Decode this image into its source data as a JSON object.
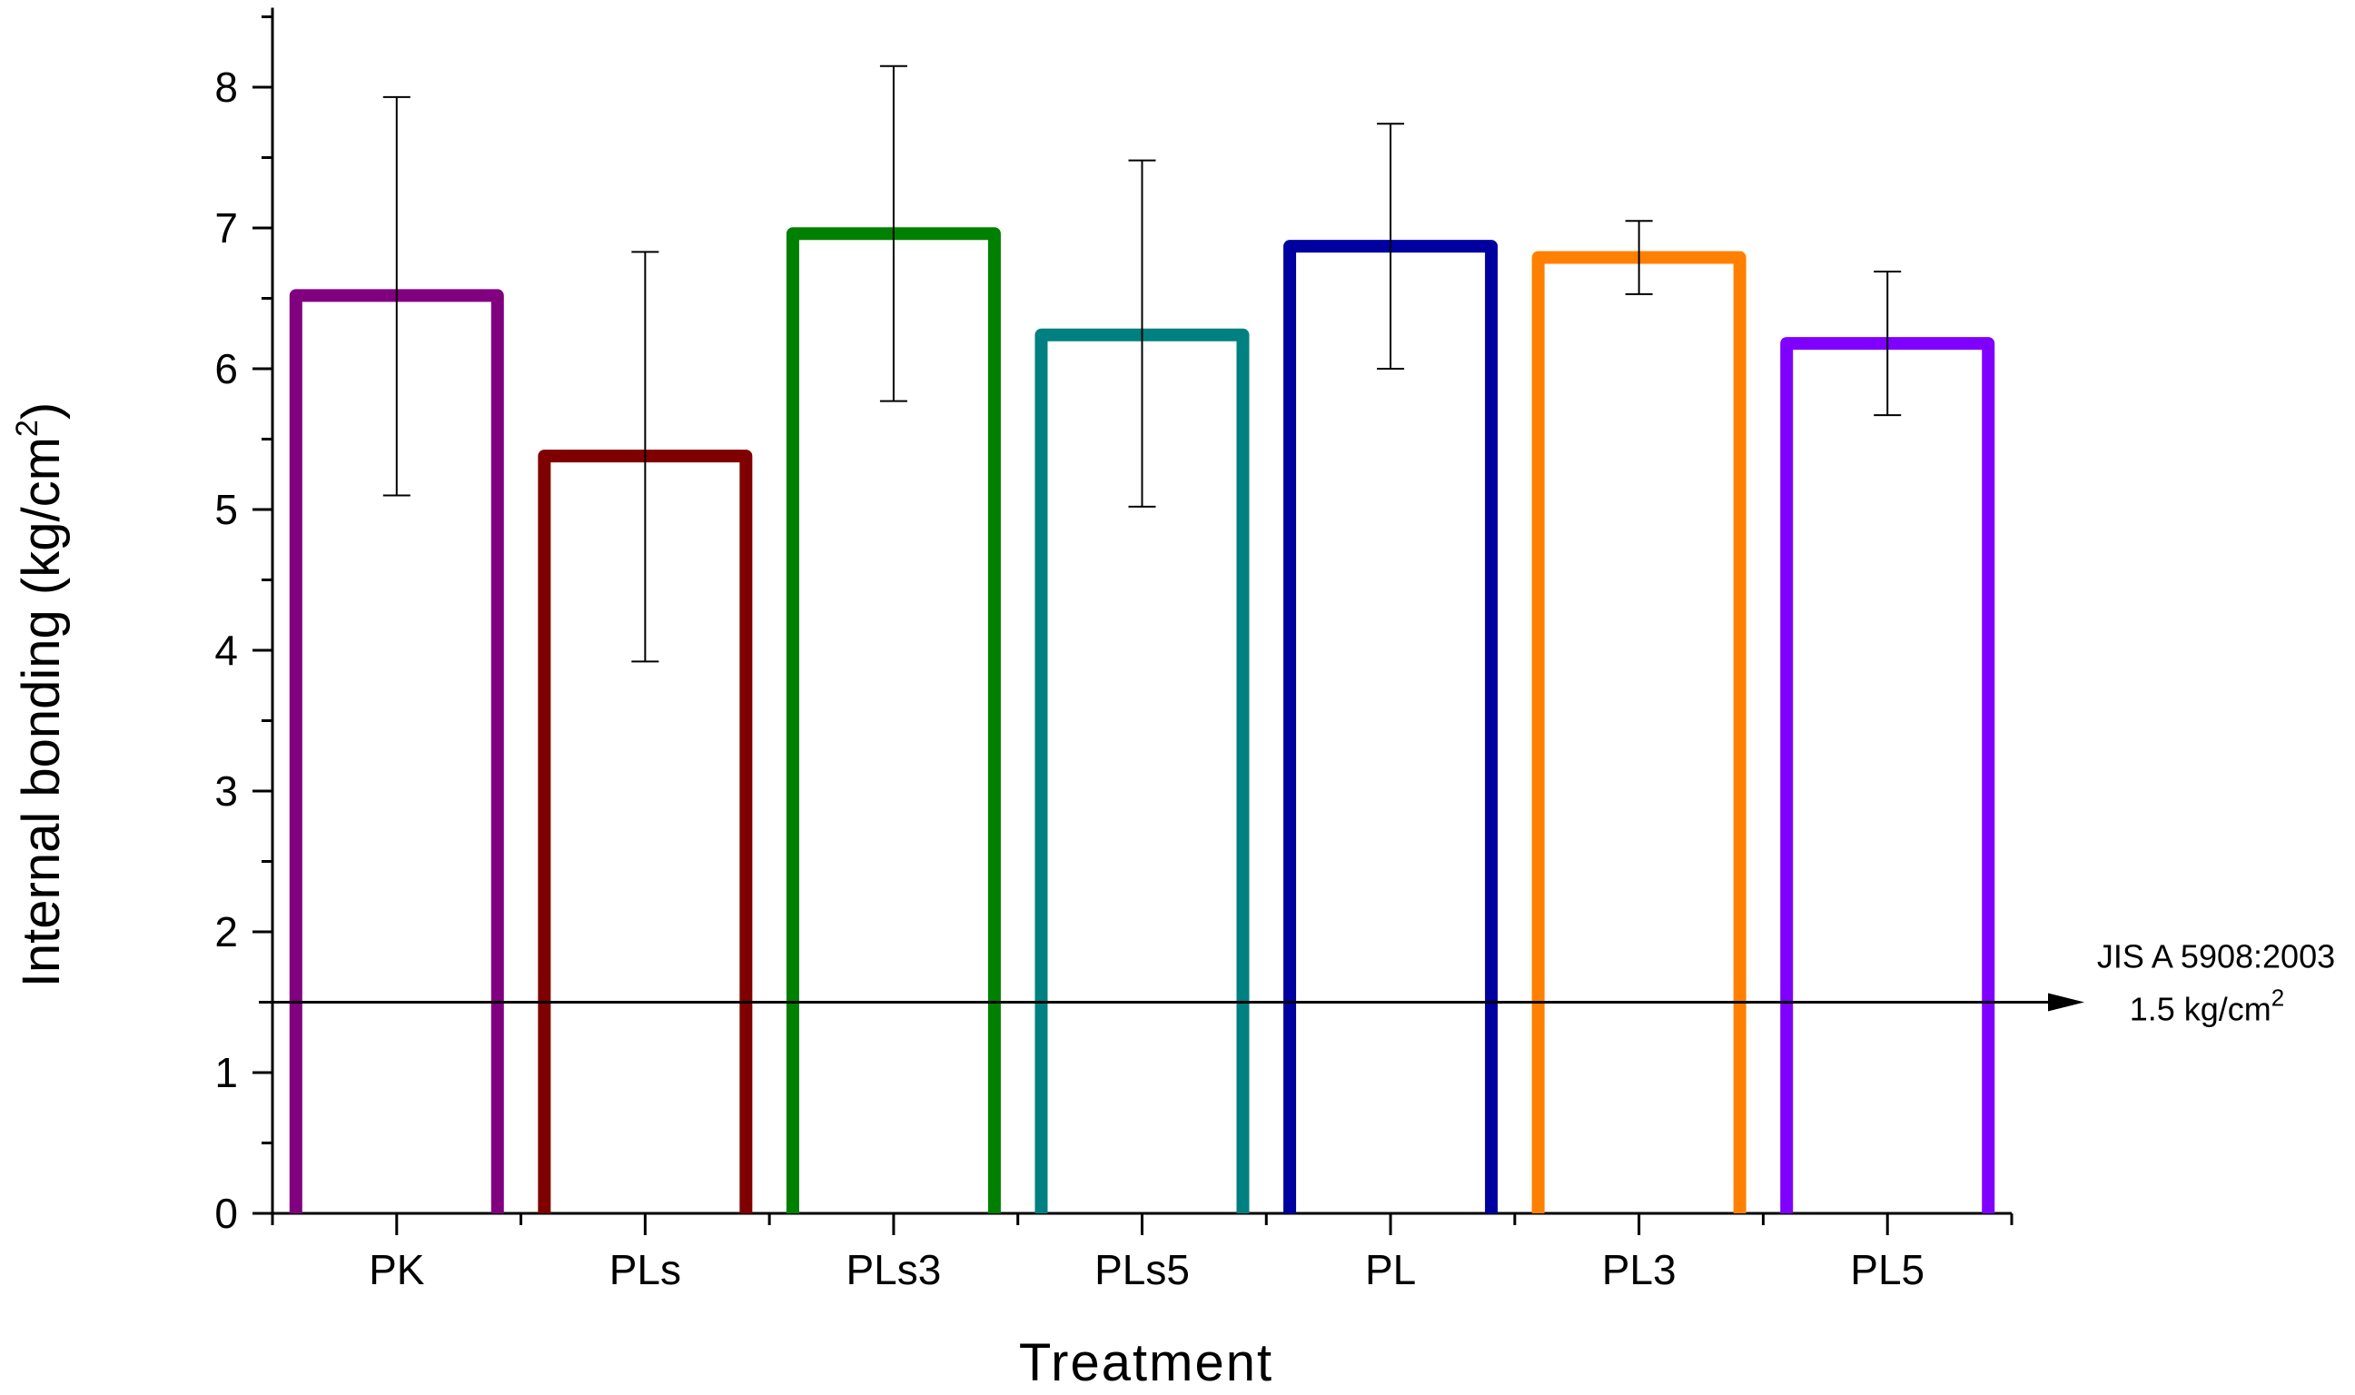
{
  "chart_data": {
    "type": "bar",
    "title": "",
    "xlabel": "Treatment",
    "ylabel_main": "Internal bonding (kg/cm",
    "ylabel_sup": "2",
    "ylabel_close": ")",
    "ylim": [
      0,
      8.5
    ],
    "yticks": [
      0,
      1,
      2,
      3,
      4,
      5,
      6,
      7,
      8
    ],
    "ytick_labels": [
      "0",
      "1",
      "2",
      "3",
      "4",
      "5",
      "6",
      "7",
      "8"
    ],
    "categories": [
      "PK",
      "PLs",
      "PLs3",
      "PLs5",
      "PL",
      "PL3",
      "PL5"
    ],
    "values": [
      6.52,
      5.38,
      6.96,
      6.24,
      6.87,
      6.79,
      6.18
    ],
    "error_low": [
      5.1,
      3.92,
      5.77,
      5.02,
      6.0,
      6.53,
      5.67
    ],
    "error_high": [
      7.93,
      6.83,
      8.15,
      7.48,
      7.74,
      7.05,
      6.69
    ],
    "colors": [
      "#800080",
      "#800000",
      "#008000",
      "#008080",
      "#0000A0",
      "#FF8000",
      "#8000FF"
    ],
    "reference_line": {
      "value": 1.5,
      "label_line1": "JIS A 5908:2003",
      "label_line2": "1.5 kg/cm",
      "label_sup": "2"
    }
  }
}
